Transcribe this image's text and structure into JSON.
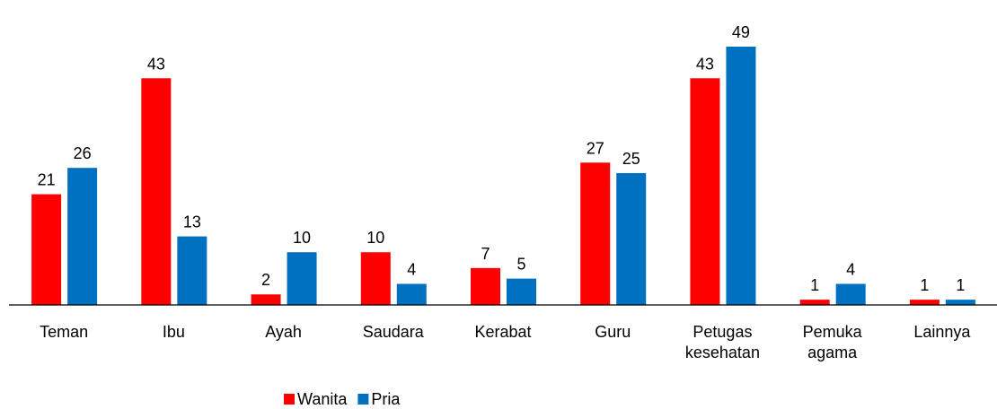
{
  "chart_data": {
    "type": "bar",
    "categories": [
      "Teman",
      "Ibu",
      "Ayah",
      "Saudara",
      "Kerabat",
      "Guru",
      "Petugas kesehatan",
      "Pemuka agama",
      "Lainnya"
    ],
    "series": [
      {
        "name": "Wanita",
        "color": "#ff0000",
        "values": [
          21,
          43,
          2,
          10,
          7,
          27,
          43,
          1,
          1
        ]
      },
      {
        "name": "Pria",
        "color": "#0070c0",
        "values": [
          26,
          13,
          10,
          4,
          5,
          25,
          49,
          4,
          1
        ]
      }
    ],
    "ylim": [
      0,
      49
    ],
    "legend": "bottom"
  }
}
